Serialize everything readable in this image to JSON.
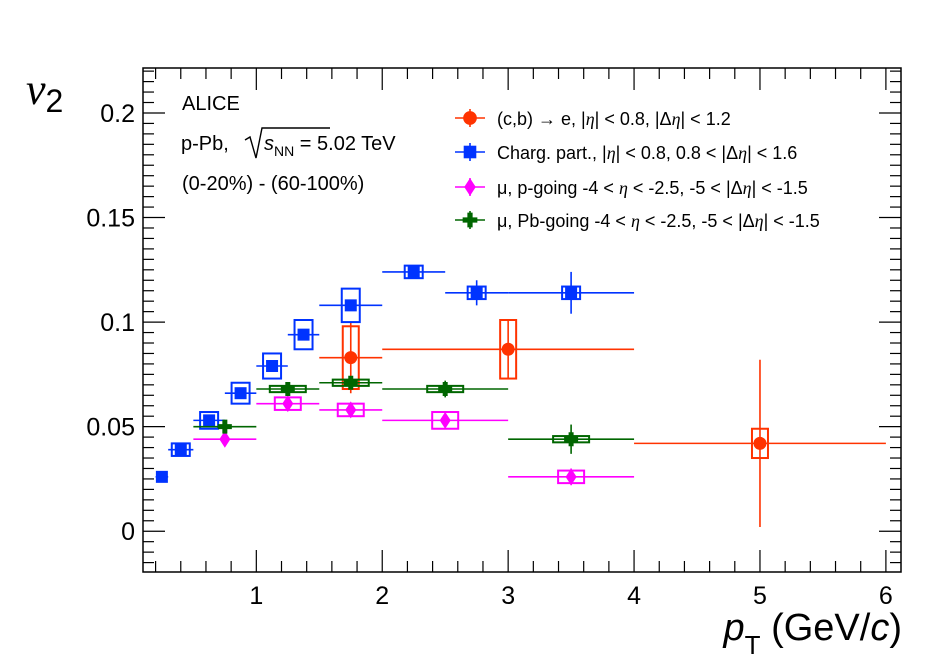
{
  "chart_data": {
    "type": "scatter",
    "title": "",
    "xlabel_main": "p",
    "xlabel_sub": "T",
    "xlabel_unit_open": " (GeV/",
    "xlabel_unit_c": "c",
    "xlabel_unit_close": ")",
    "ylabel_main": "v",
    "ylabel_sub": "2",
    "xlim": [
      0.1,
      6.12
    ],
    "ylim": [
      -0.0195,
      0.2215
    ],
    "xticks": [
      1,
      2,
      3,
      4,
      5,
      6
    ],
    "xtick_labels": [
      "1",
      "2",
      "3",
      "4",
      "5",
      "6"
    ],
    "yticks": [
      0,
      0.05,
      0.1,
      0.15,
      0.2
    ],
    "ytick_labels": [
      "0",
      "0.05",
      "0.1",
      "0.15",
      "0.2"
    ],
    "annotations": {
      "experiment": "ALICE",
      "system_prefix": "p-Pb, ",
      "sqrt_s": "s",
      "sqrt_sub": "NN",
      "energy": " = 5.02 TeV",
      "centrality": "(0-20%) - (60-100%)"
    },
    "series": [
      {
        "name": "heavy-flavour-electrons",
        "color": "#ff3300",
        "marker": "circle",
        "legend_parts": [
          "(c,b) → e, |",
          "η",
          "| < 0.8, |Δ",
          "η",
          "| < 1.2"
        ],
        "points": [
          {
            "x": 1.75,
            "y": 0.083,
            "xl": 1.5,
            "xh": 2.0,
            "stat": 0.017,
            "syst": 0.015
          },
          {
            "x": 3.0,
            "y": 0.087,
            "xl": 2.0,
            "xh": 4.0,
            "stat": 0.014,
            "syst": 0.014
          },
          {
            "x": 5.0,
            "y": 0.042,
            "xl": 4.0,
            "xh": 6.0,
            "stat": 0.04,
            "syst": 0.007
          }
        ]
      },
      {
        "name": "charged-particles",
        "color": "#0033ff",
        "marker": "square",
        "legend_parts": [
          "Charg. part., |",
          "η",
          "| < 0.8, 0.8 < |Δ",
          "η",
          "| < 1.6"
        ],
        "points": [
          {
            "x": 0.25,
            "y": 0.026,
            "xl": 0.2,
            "xh": 0.3,
            "stat": 0.001,
            "syst": 0.0
          },
          {
            "x": 0.4,
            "y": 0.039,
            "xl": 0.3,
            "xh": 0.5,
            "stat": 0.001,
            "syst": 0.003
          },
          {
            "x": 0.625,
            "y": 0.053,
            "xl": 0.5,
            "xh": 0.75,
            "stat": 0.001,
            "syst": 0.004
          },
          {
            "x": 0.875,
            "y": 0.066,
            "xl": 0.75,
            "xh": 1.0,
            "stat": 0.001,
            "syst": 0.005
          },
          {
            "x": 1.125,
            "y": 0.079,
            "xl": 1.0,
            "xh": 1.25,
            "stat": 0.002,
            "syst": 0.006
          },
          {
            "x": 1.375,
            "y": 0.094,
            "xl": 1.25,
            "xh": 1.5,
            "stat": 0.002,
            "syst": 0.007
          },
          {
            "x": 1.75,
            "y": 0.108,
            "xl": 1.5,
            "xh": 2.0,
            "stat": 0.002,
            "syst": 0.008
          },
          {
            "x": 2.25,
            "y": 0.124,
            "xl": 2.0,
            "xh": 2.5,
            "stat": 0.003,
            "syst": 0.003
          },
          {
            "x": 2.75,
            "y": 0.114,
            "xl": 2.5,
            "xh": 3.0,
            "stat": 0.006,
            "syst": 0.003
          },
          {
            "x": 3.5,
            "y": 0.114,
            "xl": 3.0,
            "xh": 4.0,
            "stat": 0.01,
            "syst": 0.003
          }
        ]
      },
      {
        "name": "muons-p-going",
        "color": "#ff00ff",
        "marker": "diamond",
        "legend_parts": [
          "μ, p-going -4 < ",
          "η",
          " < -2.5, -5 < |Δ",
          "η",
          "| < -1.5"
        ],
        "points": [
          {
            "x": 0.75,
            "y": 0.044,
            "xl": 0.5,
            "xh": 1.0,
            "stat": 0.002,
            "syst": 0.0
          },
          {
            "x": 1.25,
            "y": 0.061,
            "xl": 1.0,
            "xh": 1.5,
            "stat": 0.002,
            "syst": 0.003
          },
          {
            "x": 1.75,
            "y": 0.058,
            "xl": 1.5,
            "xh": 2.0,
            "stat": 0.002,
            "syst": 0.003
          },
          {
            "x": 2.5,
            "y": 0.053,
            "xl": 2.0,
            "xh": 3.0,
            "stat": 0.003,
            "syst": 0.004
          },
          {
            "x": 3.5,
            "y": 0.026,
            "xl": 3.0,
            "xh": 4.0,
            "stat": 0.004,
            "syst": 0.003
          }
        ]
      },
      {
        "name": "muons-pb-going",
        "color": "#006600",
        "marker": "cross",
        "legend_parts": [
          "μ, Pb-going -4 < ",
          "η",
          " < -2.5, -5 < |Δ",
          "η",
          "| < -1.5"
        ],
        "points": [
          {
            "x": 0.75,
            "y": 0.05,
            "xl": 0.5,
            "xh": 1.0,
            "stat": 0.002,
            "syst": 0.0
          },
          {
            "x": 1.25,
            "y": 0.068,
            "xl": 1.0,
            "xh": 1.5,
            "stat": 0.002,
            "syst": 0.0015
          },
          {
            "x": 1.75,
            "y": 0.071,
            "xl": 1.5,
            "xh": 2.0,
            "stat": 0.003,
            "syst": 0.0015
          },
          {
            "x": 2.5,
            "y": 0.068,
            "xl": 2.0,
            "xh": 3.0,
            "stat": 0.004,
            "syst": 0.0015
          },
          {
            "x": 3.5,
            "y": 0.044,
            "xl": 3.0,
            "xh": 4.0,
            "stat": 0.007,
            "syst": 0.0015
          }
        ]
      }
    ]
  }
}
